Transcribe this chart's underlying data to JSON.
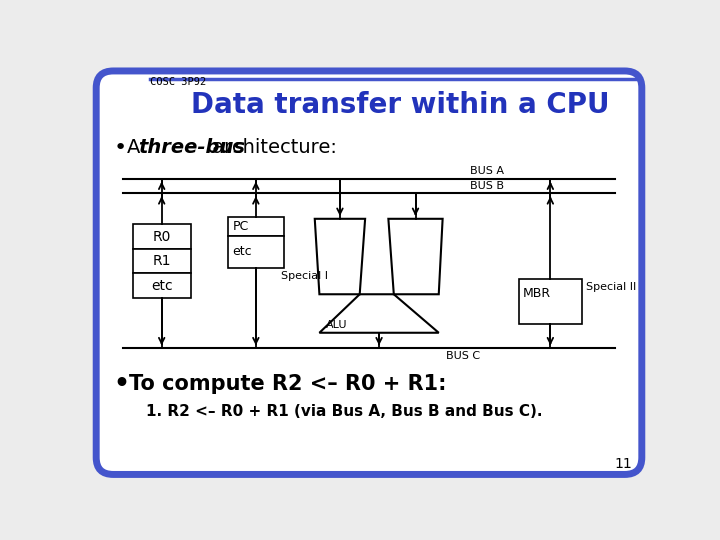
{
  "title": "Data transfer within a CPU",
  "subtitle": "COSC 3P92",
  "bg_color": "#ececec",
  "border_color": "#4455cc",
  "title_color": "#2233bb",
  "bus_a_label": "BUS A",
  "bus_b_label": "BUS B",
  "bus_c_label": "BUS C",
  "reg_labels": [
    "R0",
    "R1",
    "etc"
  ],
  "pc_labels": [
    "PC",
    "etc"
  ],
  "special_i_label": "Special I",
  "special_ii_label": "Special II",
  "alu_label": "ALU",
  "mbr_label": "MBR",
  "bullet2": "To compute R2 <– R0 + R1:",
  "bullet2_sub": "1. R2 <– R0 + R1 (via Bus A, Bus B and Bus C).",
  "page_num": "11"
}
